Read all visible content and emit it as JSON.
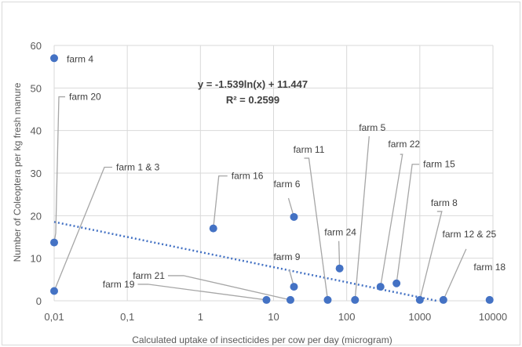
{
  "chart_data": {
    "type": "scatter",
    "xlabel": "Calculated uptake of insecticides per cow per day (microgram)",
    "ylabel": "Number of Coleoptera per kg fresh manure",
    "x_scale": "log10",
    "xlim": [
      0.01,
      10000
    ],
    "ylim": [
      0,
      60
    ],
    "x_tick_labels": [
      "0,01",
      "0,1",
      "1",
      "10",
      "100",
      "1000",
      "10000"
    ],
    "y_tick_labels": [
      "0",
      "10",
      "20",
      "30",
      "40",
      "50",
      "60"
    ],
    "grid": true,
    "marker_color": "#4472c4",
    "trendline_color": "#4472c4",
    "series": [
      {
        "points": [
          {
            "label": "farm 4",
            "x": 0.01,
            "y": 57
          },
          {
            "label": "farm 20",
            "x": 0.01,
            "y": 13.7
          },
          {
            "label": "farm 1 & 3",
            "x": 0.01,
            "y": 2.3
          },
          {
            "label": "farm 16",
            "x": 1.5,
            "y": 17
          },
          {
            "label": "farm 6",
            "x": 19,
            "y": 19.7
          },
          {
            "label": "farm 9",
            "x": 19,
            "y": 3.3
          },
          {
            "label": "farm 21",
            "x": 17,
            "y": 0.2
          },
          {
            "label": "farm 19",
            "x": 8,
            "y": 0.2
          },
          {
            "label": "farm 11",
            "x": 55,
            "y": 0.2
          },
          {
            "label": "farm 24",
            "x": 80,
            "y": 7.6
          },
          {
            "label": "farm 5",
            "x": 130,
            "y": 0.2
          },
          {
            "label": "farm 22",
            "x": 290,
            "y": 3.3
          },
          {
            "label": "farm 15",
            "x": 480,
            "y": 4.1
          },
          {
            "label": "farm 8",
            "x": 1000,
            "y": 0.2
          },
          {
            "label": "farm 12 & 25",
            "x": 2100,
            "y": 0.2
          },
          {
            "label": "farm 18",
            "x": 9000,
            "y": 0.2
          }
        ]
      }
    ],
    "trendline": {
      "type": "logarithmic",
      "a": -1.539,
      "b": 11.447,
      "equation": "y = -1.539ln(x) + 11.447",
      "r_squared": "R² = 0.2599"
    }
  }
}
